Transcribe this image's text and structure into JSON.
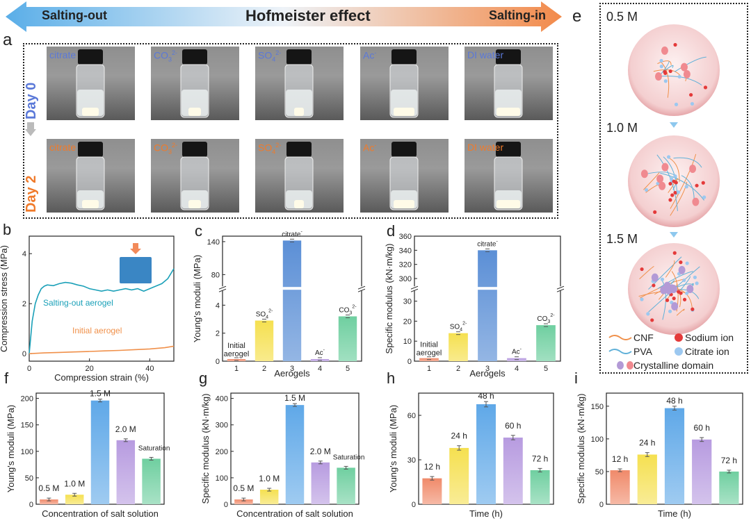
{
  "header": {
    "left": "Salting-out",
    "center": "Hofmeister effect",
    "right": "Salting-in"
  },
  "panels": {
    "a": "a",
    "b": "b",
    "c": "c",
    "d": "d",
    "e": "e",
    "f": "f",
    "g": "g",
    "h": "h",
    "i": "i"
  },
  "photos": {
    "day0": "Day 0",
    "day2": "Day 2",
    "labels": [
      "citrate",
      "CO3 2-",
      "SO4 2-",
      "Ac-",
      "DI water"
    ]
  },
  "schematic": {
    "concentrations": [
      "0.5 M",
      "1.0 M",
      "1.5 M"
    ],
    "legend": {
      "cnf": "CNF",
      "sodium": "Sodium ion",
      "pva": "PVA",
      "citrate": "Citrate  ion",
      "crystalline": "Crystalline domain"
    }
  },
  "chart_data": [
    {
      "panel": "b",
      "type": "line",
      "xlabel": "Compression strain (%)",
      "ylabel": "Compression stress (MPa)",
      "xlim": [
        0,
        48
      ],
      "ylim": [
        -0.3,
        4.7
      ],
      "xticks": [
        0,
        20,
        40
      ],
      "yticks": [
        0,
        2,
        4
      ],
      "series": [
        {
          "name": "Salting-out aerogel",
          "color": "#1aa0b8",
          "x": [
            0,
            1,
            2,
            3,
            4,
            5,
            6,
            8,
            10,
            12,
            14,
            16,
            18,
            20,
            22,
            24,
            26,
            28,
            30,
            32,
            34,
            36,
            38,
            40,
            42,
            44,
            46,
            48
          ],
          "y": [
            0,
            1.3,
            2.0,
            2.35,
            2.6,
            2.7,
            2.75,
            2.72,
            2.8,
            2.85,
            2.82,
            2.75,
            2.7,
            2.6,
            2.55,
            2.5,
            2.55,
            2.5,
            2.55,
            2.6,
            2.55,
            2.6,
            2.5,
            2.6,
            2.7,
            2.8,
            3.0,
            3.4
          ]
        },
        {
          "name": "Initial aerogel",
          "color": "#f0904a",
          "x": [
            0,
            5,
            10,
            15,
            20,
            25,
            30,
            35,
            40,
            45,
            48
          ],
          "y": [
            0,
            0.03,
            0.05,
            0.07,
            0.09,
            0.11,
            0.13,
            0.16,
            0.19,
            0.24,
            0.3
          ]
        }
      ]
    },
    {
      "panel": "c",
      "type": "bar",
      "xlabel": "Aerogels",
      "ylabel": "Young's moduli (MPa)",
      "categories": [
        "1",
        "2",
        "3",
        "4",
        "5"
      ],
      "values": [
        0.15,
        2.9,
        142,
        0.15,
        3.2
      ],
      "errors": [
        0.03,
        0.1,
        1.5,
        0.03,
        0.1
      ],
      "bar_labels": [
        "Initial aerogel",
        "SO4 2-",
        "citrate-",
        "Ac-",
        "CO3 2-"
      ],
      "colors": [
        "#f08a6a",
        "#f5e050",
        "#5b8fd6",
        "#b79be0",
        "#6fcfa0"
      ],
      "axis_break": true,
      "lower_range": [
        0,
        5
      ],
      "lower_ticks": [
        0,
        2,
        4
      ],
      "upper_range": [
        60,
        150
      ],
      "upper_ticks": [
        80,
        140
      ]
    },
    {
      "panel": "d",
      "type": "bar",
      "xlabel": "Aerogels",
      "ylabel": "Specific modulus (kN·m/kg)",
      "categories": [
        "1",
        "2",
        "3",
        "4",
        "5"
      ],
      "values": [
        1.5,
        14,
        340,
        1.5,
        18
      ],
      "errors": [
        0.5,
        1.5,
        2.5,
        0.5,
        1
      ],
      "bar_labels": [
        "Initial aerogel",
        "SO4 2-",
        "citrate-",
        "Ac-",
        "CO3 2-"
      ],
      "colors": [
        "#f08a6a",
        "#f5e050",
        "#5b8fd6",
        "#b79be0",
        "#6fcfa0"
      ],
      "axis_break": true,
      "lower_range": [
        0,
        35
      ],
      "lower_ticks": [
        0,
        10,
        20,
        30
      ],
      "upper_range": [
        290,
        360
      ],
      "upper_ticks": [
        300,
        320,
        340,
        360
      ]
    },
    {
      "panel": "f",
      "type": "bar",
      "xlabel": "Concentration of salt solution",
      "ylabel": "Young's moduli (MPa)",
      "ylim": [
        0,
        210
      ],
      "yticks": [
        0,
        50,
        100,
        150,
        200
      ],
      "categories": [
        "0.5 M",
        "1.0 M",
        "1.5 M",
        "2.0 M",
        "Saturation"
      ],
      "values": [
        9,
        18,
        196,
        121,
        86
      ],
      "errors": [
        1,
        2,
        2.5,
        2,
        1.5
      ],
      "colors": [
        "#f08a6a",
        "#f5e050",
        "#5fa8e8",
        "#b79be0",
        "#6fcfa0"
      ]
    },
    {
      "panel": "g",
      "type": "bar",
      "xlabel": "Concentration of salt solution",
      "ylabel": "Specific modulus (kN·m/kg)",
      "ylim": [
        0,
        420
      ],
      "yticks": [
        0,
        100,
        200,
        300,
        400
      ],
      "categories": [
        "0.5 M",
        "1.0 M",
        "1.5 M",
        "2.0 M",
        "Saturation"
      ],
      "values": [
        18,
        55,
        375,
        158,
        138
      ],
      "errors": [
        2,
        3,
        4,
        3,
        2
      ],
      "colors": [
        "#f08a6a",
        "#f5e050",
        "#5fa8e8",
        "#b79be0",
        "#6fcfa0"
      ]
    },
    {
      "panel": "h",
      "type": "bar",
      "xlabel": "Time (h)",
      "ylabel": "Young's moduli (MPa)",
      "ylim": [
        0,
        75
      ],
      "yticks": [
        0,
        30,
        60
      ],
      "categories": [
        "12 h",
        "24 h",
        "48 h",
        "60 h",
        "72 h"
      ],
      "values": [
        17.5,
        38,
        67.5,
        45,
        23
      ],
      "errors": [
        1.2,
        1.5,
        1.8,
        1.5,
        1.2
      ],
      "colors": [
        "#f08a6a",
        "#f5e050",
        "#5fa8e8",
        "#b79be0",
        "#6fcfa0"
      ]
    },
    {
      "panel": "i",
      "type": "bar",
      "xlabel": "Time (h)",
      "ylabel": "Specific modulus (kN·m/kg)",
      "ylim": [
        0,
        170
      ],
      "yticks": [
        0,
        50,
        100,
        150
      ],
      "categories": [
        "12 h",
        "24 h",
        "48 h",
        "60 h",
        "72 h"
      ],
      "values": [
        52,
        76,
        147,
        99,
        50
      ],
      "errors": [
        2,
        3,
        3,
        3,
        2
      ],
      "colors": [
        "#f08a6a",
        "#f5e050",
        "#5fa8e8",
        "#b79be0",
        "#6fcfa0"
      ]
    }
  ]
}
